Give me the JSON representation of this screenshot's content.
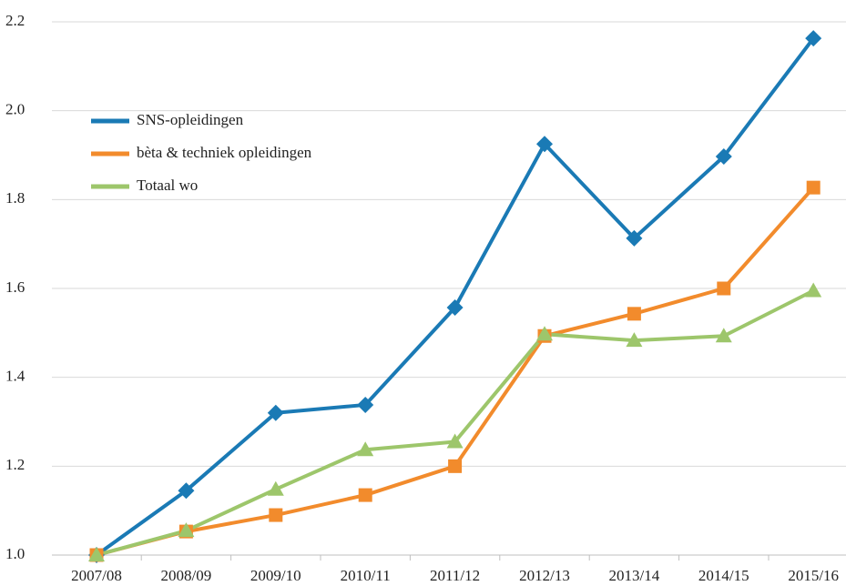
{
  "chart_data": {
    "type": "line",
    "categories": [
      "2007/08",
      "2008/09",
      "2009/10",
      "2010/11",
      "2011/12",
      "2012/13",
      "2013/14",
      "2014/15",
      "2015/16"
    ],
    "series": [
      {
        "name": "SNS-opleidingen",
        "color": "#1a7ab5",
        "marker": "diamond",
        "values": [
          1.0,
          1.145,
          1.32,
          1.338,
          1.557,
          1.925,
          1.713,
          1.897,
          2.163
        ]
      },
      {
        "name": "bèta & techniek opleidingen",
        "color": "#f28b2c",
        "marker": "square",
        "values": [
          1.0,
          1.053,
          1.09,
          1.135,
          1.2,
          1.493,
          1.543,
          1.6,
          1.827
        ]
      },
      {
        "name": "Totaal wo",
        "color": "#9dc66b",
        "marker": "triangle",
        "values": [
          1.0,
          1.055,
          1.148,
          1.237,
          1.255,
          1.497,
          1.483,
          1.493,
          1.595
        ]
      }
    ],
    "ylim": [
      1.0,
      2.2
    ],
    "yticks": [
      {
        "value": 1.0,
        "label": "1.0"
      },
      1.2,
      1.4,
      1.6,
      1.8,
      {
        "value": 2.0,
        "label": "2.0"
      },
      2.2
    ],
    "grid": true,
    "legend": "upper left"
  }
}
